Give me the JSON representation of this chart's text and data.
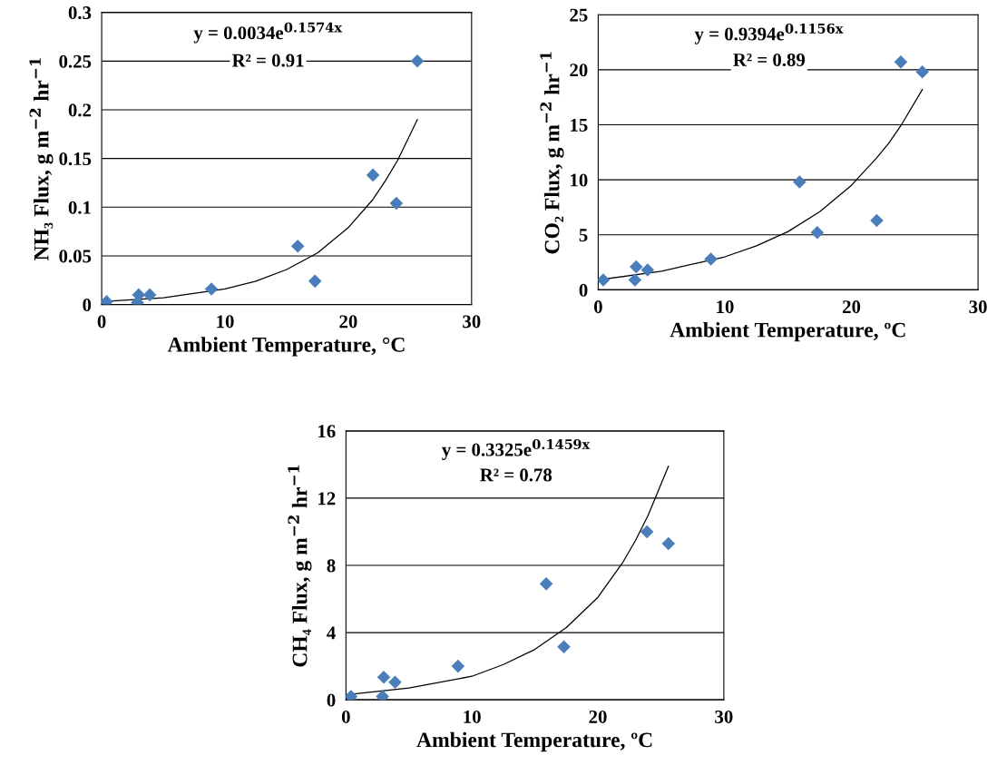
{
  "chart_data": [
    {
      "type": "scatter",
      "xlabel": "Ambient Temperature, °C",
      "ylabel": "NH₃ Flux, g m$^{−2}$ hr$^{−1}$",
      "xlim": [
        0,
        30
      ],
      "xticks": [
        0,
        10,
        20,
        30
      ],
      "ylim": [
        0,
        0.3
      ],
      "yticks": [
        0,
        0.05,
        0.1,
        0.15,
        0.2,
        0.25,
        0.3
      ],
      "grid": "y",
      "legend": false,
      "annotations": [
        "y = 0.0034e$^{0.1574x}$",
        "R² = 0.91"
      ],
      "series": [
        {
          "marker": "diamond",
          "color": "#4a7ebb",
          "x": [
            0.4,
            2.9,
            3.0,
            3.9,
            8.9,
            15.9,
            17.3,
            22.0,
            23.9,
            25.6
          ],
          "values": [
            0.003,
            0.002,
            0.01,
            0.01,
            0.016,
            0.06,
            0.024,
            0.133,
            0.104,
            0.25
          ]
        },
        {
          "type": "line",
          "color": "#000000",
          "line_style": "solid",
          "x": [
            0,
            5,
            10,
            12.5,
            15,
            17.5,
            20,
            22,
            23,
            24,
            25.6
          ],
          "values": [
            0.003,
            0.007,
            0.016,
            0.024,
            0.036,
            0.053,
            0.079,
            0.108,
            0.127,
            0.148,
            0.19
          ]
        }
      ]
    },
    {
      "type": "scatter",
      "xlabel": "Ambient Temperature, ºC",
      "ylabel": "CO₂ Flux, g m$^{−2}$ hr$^{−1}$",
      "xlim": [
        0,
        30
      ],
      "xticks": [
        0,
        10,
        20,
        30
      ],
      "ylim": [
        0,
        25
      ],
      "yticks": [
        0,
        5,
        10,
        15,
        20,
        25
      ],
      "grid": "y",
      "legend": false,
      "annotations": [
        "y = 0.9394e$^{0.1156x}$",
        "R² = 0.89"
      ],
      "series": [
        {
          "marker": "diamond",
          "color": "#4a7ebb",
          "x": [
            0.4,
            2.9,
            3.0,
            3.9,
            8.9,
            15.9,
            17.3,
            22.0,
            23.9,
            25.6
          ],
          "values": [
            0.9,
            0.9,
            2.1,
            1.8,
            2.8,
            9.8,
            5.2,
            6.3,
            20.7,
            19.8
          ]
        },
        {
          "type": "line",
          "color": "#000000",
          "line_style": "solid",
          "x": [
            0,
            5,
            10,
            12.5,
            15,
            17.5,
            20,
            22,
            23,
            24,
            25.6
          ],
          "values": [
            0.9,
            1.7,
            3.0,
            4.0,
            5.3,
            7.1,
            9.5,
            12.0,
            13.4,
            15.1,
            18.2
          ]
        }
      ]
    },
    {
      "type": "scatter",
      "xlabel": "Ambient Temperature, ºC",
      "ylabel": "CH₄ Flux, g m$^{−2}$ hr$^{−1}$",
      "xlim": [
        0,
        30
      ],
      "xticks": [
        0,
        10,
        20,
        30
      ],
      "ylim": [
        0,
        16
      ],
      "yticks": [
        0,
        4,
        8,
        12,
        16
      ],
      "grid": "y",
      "legend": false,
      "annotations": [
        "y = 0.3325e$^{0.1459x}$",
        "R² = 0.78"
      ],
      "series": [
        {
          "marker": "diamond",
          "color": "#4a7ebb",
          "x": [
            0.4,
            2.9,
            3.0,
            3.9,
            8.9,
            15.9,
            17.3,
            23.9,
            25.6
          ],
          "values": [
            0.2,
            0.2,
            1.35,
            1.05,
            2.0,
            6.9,
            3.15,
            10.0,
            9.3
          ]
        },
        {
          "type": "line",
          "color": "#000000",
          "line_style": "solid",
          "x": [
            0,
            5,
            10,
            12.5,
            15,
            17.5,
            20,
            22,
            23,
            24,
            25.6
          ],
          "values": [
            0.3,
            0.7,
            1.4,
            2.1,
            3.0,
            4.3,
            6.1,
            8.2,
            9.5,
            11.0,
            13.9
          ]
        }
      ]
    }
  ]
}
